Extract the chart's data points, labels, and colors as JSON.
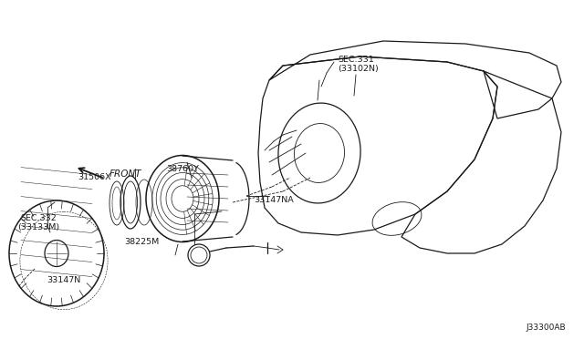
{
  "bg_color": "#ffffff",
  "line_color": "#1a1a1a",
  "fig_width": 6.4,
  "fig_height": 3.72,
  "dpi": 100,
  "labels": {
    "SEC331": "SEC.331",
    "SEC331b": "(33102N)",
    "part38760Y": "38760Y",
    "part31506X": "31506X",
    "part33147NA": "33147NA",
    "part38225M": "38225M",
    "part33147N": "33147N",
    "SEC332": "SEC.332",
    "SEC332b": "(33133M)",
    "FRONT": "FRONT",
    "diagram_id": "J33300AB"
  }
}
